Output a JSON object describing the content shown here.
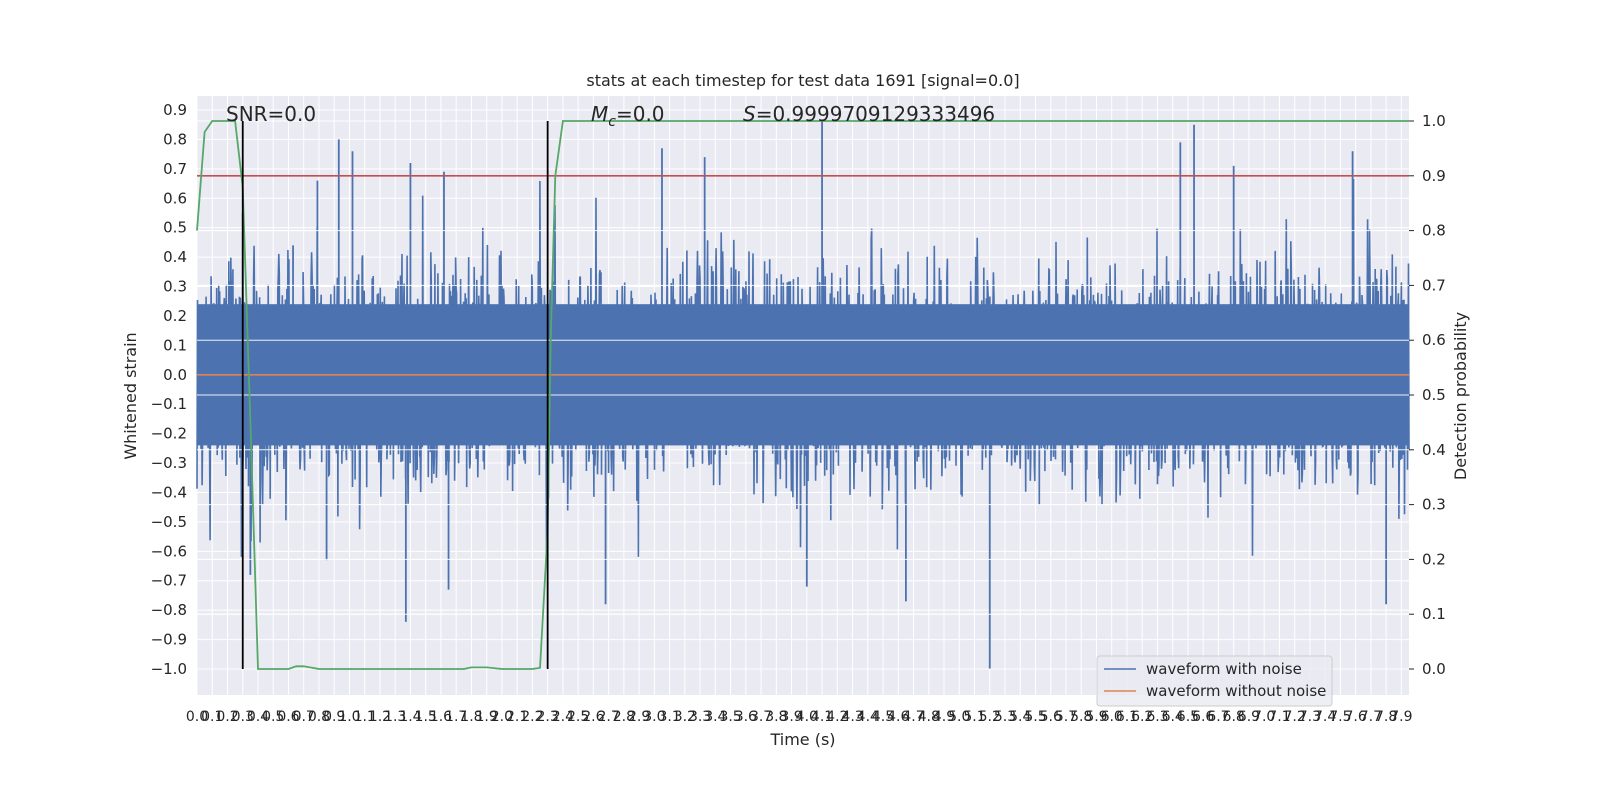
{
  "chart_data": {
    "type": "line",
    "title": "stats at each timestep for test data 1691 [signal=0.0]",
    "xlabel": "Time (s)",
    "ylabel": "Whitened strain",
    "ylabel_right": "Detection probability",
    "xlim": [
      0.0,
      7.95
    ],
    "ylim": [
      -1.1,
      0.95
    ],
    "ylim_right": [
      -0.05,
      1.03
    ],
    "grid": true,
    "x_tick_labels": [
      "0.0",
      "0.1",
      "0.2",
      "0.3",
      "0.4",
      "0.5",
      "0.6",
      "0.7",
      "0.8",
      "0.9",
      "1.0",
      "1.1",
      "1.2",
      "1.3",
      "1.4",
      "1.5",
      "1.6",
      "1.7",
      "1.8",
      "1.9",
      "2.0",
      "2.1",
      "2.2",
      "2.3",
      "2.4",
      "2.5",
      "2.6",
      "2.7",
      "2.8",
      "2.9",
      "3.0",
      "3.1",
      "3.2",
      "3.3",
      "3.4",
      "3.5",
      "3.6",
      "3.7",
      "3.8",
      "3.9",
      "4.0",
      "4.1",
      "4.2",
      "4.3",
      "4.4",
      "4.5",
      "4.6",
      "4.7",
      "4.8",
      "4.9",
      "5.0",
      "5.1",
      "5.2",
      "5.3",
      "5.4",
      "5.5",
      "5.6",
      "5.7",
      "5.8",
      "5.9",
      "6.0",
      "6.1",
      "6.2",
      "6.3",
      "6.4",
      "6.5",
      "6.6",
      "6.7",
      "6.8",
      "6.9",
      "7.0",
      "7.1",
      "7.2",
      "7.3",
      "7.4",
      "7.5",
      "7.6",
      "7.7",
      "7.8",
      "7.9"
    ],
    "y_tick_labels": [
      "0.9",
      "0.8",
      "0.7",
      "0.6",
      "0.5",
      "0.4",
      "0.3",
      "0.2",
      "0.1",
      "0.0",
      "−0.1",
      "−0.2",
      "−0.3",
      "−0.4",
      "−0.5",
      "−0.6",
      "−0.7",
      "−0.8",
      "−0.9",
      "−1.0"
    ],
    "y_right_tick_labels": [
      "1.0",
      "0.9",
      "0.8",
      "0.7",
      "0.6",
      "0.5",
      "0.4",
      "0.3",
      "0.2",
      "0.1",
      "0.0"
    ],
    "annotations": {
      "snr": "SNR=0.0",
      "mc_symbol": "M",
      "mc_sub": "c",
      "mc_value": "=0.0",
      "s_symbol": "S",
      "s_value": "=0.9999709129333496"
    },
    "threshold": {
      "value": 0.9,
      "axis": "right",
      "color": "#c44e52"
    },
    "vertical_markers": [
      0.3,
      2.3
    ],
    "series": [
      {
        "name": "waveform with noise",
        "axis": "left",
        "color": "#4c72b0",
        "note_range": "dense noise roughly between -0.5 and 0.45 with spikes",
        "spikes": [
          {
            "x": 0.3,
            "y": 0.55
          },
          {
            "x": 0.35,
            "y": -0.68
          },
          {
            "x": 0.63,
            "y": 0.44
          },
          {
            "x": 0.79,
            "y": 0.66
          },
          {
            "x": 0.93,
            "y": 0.8
          },
          {
            "x": 0.85,
            "y": -0.63
          },
          {
            "x": 1.02,
            "y": 0.76
          },
          {
            "x": 1.4,
            "y": 0.72
          },
          {
            "x": 1.37,
            "y": -0.84
          },
          {
            "x": 1.62,
            "y": 0.69
          },
          {
            "x": 1.65,
            "y": -0.73
          },
          {
            "x": 2.68,
            "y": -0.78
          },
          {
            "x": 3.05,
            "y": 0.77
          },
          {
            "x": 3.33,
            "y": 0.74
          },
          {
            "x": 4.0,
            "y": -0.72
          },
          {
            "x": 4.1,
            "y": 0.86
          },
          {
            "x": 4.65,
            "y": -0.77
          },
          {
            "x": 5.2,
            "y": -1.0
          },
          {
            "x": 6.45,
            "y": 0.79
          },
          {
            "x": 6.54,
            "y": 0.85
          },
          {
            "x": 6.8,
            "y": 0.71
          },
          {
            "x": 7.58,
            "y": 0.76
          },
          {
            "x": 7.8,
            "y": -0.78
          }
        ]
      },
      {
        "name": "waveform without noise",
        "axis": "left",
        "color": "#dd8452",
        "x": [
          0.0,
          7.95
        ],
        "y": [
          0.0,
          0.0
        ]
      },
      {
        "name": "detection probability",
        "axis": "right",
        "color": "#55a868",
        "x": [
          0.0,
          0.05,
          0.1,
          0.25,
          0.3,
          0.35,
          0.4,
          0.45,
          0.6,
          0.65,
          0.7,
          0.8,
          1.0,
          1.5,
          1.75,
          1.8,
          1.9,
          2.0,
          2.2,
          2.25,
          2.3,
          2.32,
          2.35,
          2.4,
          7.95
        ],
        "y": [
          0.8,
          0.98,
          1.0,
          1.0,
          0.88,
          0.45,
          0.0,
          0.0,
          0.0,
          0.005,
          0.005,
          0.0,
          0.0,
          0.0,
          0.0,
          0.003,
          0.003,
          0.0,
          0.0,
          0.002,
          0.25,
          0.6,
          0.9,
          1.0,
          1.0
        ]
      }
    ]
  }
}
